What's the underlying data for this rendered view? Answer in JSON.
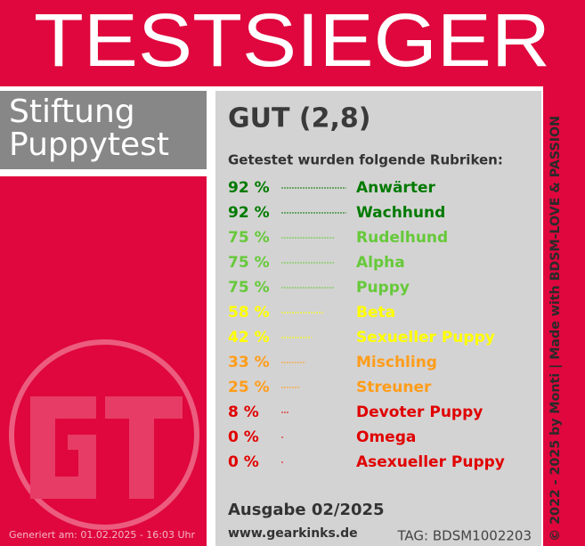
{
  "banner": {
    "title": "TESTSIEGER"
  },
  "publisher": {
    "line1": "Stiftung",
    "line2": "Puppytest"
  },
  "rating": "GUT (2,8)",
  "intro": "Getestet wurden folgende Rubriken:",
  "rows": [
    {
      "percent": {
        "value": 92,
        "label": "92 %"
      },
      "name": "Anwärter",
      "color": "#007a00"
    },
    {
      "percent": {
        "value": 92,
        "label": "92 %"
      },
      "name": "Wachhund",
      "color": "#007a00"
    },
    {
      "percent": {
        "value": 75,
        "label": "75 %"
      },
      "name": "Rudelhund",
      "color": "#66c93a"
    },
    {
      "percent": {
        "value": 75,
        "label": "75 %"
      },
      "name": "Alpha",
      "color": "#66c93a"
    },
    {
      "percent": {
        "value": 75,
        "label": "75 %"
      },
      "name": "Puppy",
      "color": "#66c93a"
    },
    {
      "percent": {
        "value": 58,
        "label": "58 %"
      },
      "name": "Beta",
      "color": "#ffff00"
    },
    {
      "percent": {
        "value": 42,
        "label": "42 %"
      },
      "name": "Sexueller Puppy",
      "color": "#ffff00"
    },
    {
      "percent": {
        "value": 33,
        "label": "33 %"
      },
      "name": "Mischling",
      "color": "#ff9d1a"
    },
    {
      "percent": {
        "value": 25,
        "label": "25 %"
      },
      "name": "Streuner",
      "color": "#ff9d1a"
    },
    {
      "percent": {
        "value": 8,
        "label": "8 %"
      },
      "name": "Devoter Puppy",
      "color": "#e00000"
    },
    {
      "percent": {
        "value": 0,
        "label": "0 %"
      },
      "name": "Omega",
      "color": "#e00000"
    },
    {
      "percent": {
        "value": 0,
        "label": "0 %"
      },
      "name": "Asexueller Puppy",
      "color": "#e00000"
    }
  ],
  "issue": "Ausgabe 02/2025",
  "website": "www.gearkinks.de",
  "tag": "TAG: BDSM1002203",
  "generated": "Generiert am: 01.02.2025 - 16:03 Uhr",
  "copyright": "© 2022 - 2025 by Monti | Made with BDSM-LOVE & PASSION"
}
